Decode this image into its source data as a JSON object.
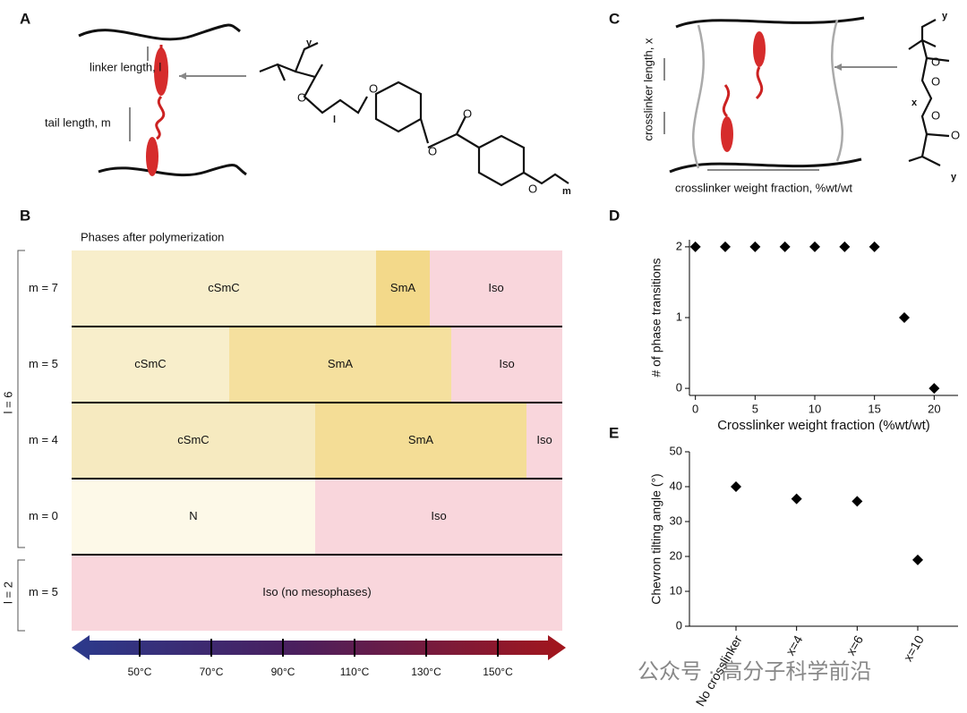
{
  "panels": {
    "a": "A",
    "b": "B",
    "c": "C",
    "d": "D",
    "e": "E"
  },
  "schematic_a": {
    "linker_label": "linker length, l",
    "tail_label": "tail length, m",
    "oxygen": "O",
    "y": "y",
    "l": "l",
    "m": "m"
  },
  "schematic_c": {
    "length_label": "crosslinker length, x",
    "fraction_label": "crosslinker weight fraction, %wt/wt",
    "oxygen": "O",
    "x": "x",
    "y": "y"
  },
  "phase_diagram": {
    "title": "Phases after polymerization",
    "group_labels": [
      "l = 6",
      "l = 2"
    ],
    "tlim": [
      31,
      168
    ],
    "temperature_ticks": [
      {
        "value": 50,
        "label": "50°C"
      },
      {
        "value": 70,
        "label": "70°C"
      },
      {
        "value": 90,
        "label": "90°C"
      },
      {
        "value": 110,
        "label": "110°C"
      },
      {
        "value": 130,
        "label": "130°C"
      },
      {
        "value": 150,
        "label": "150°C"
      }
    ],
    "rows": [
      {
        "label": "m = 7",
        "phases": [
          {
            "name": "cSmC",
            "from": 31,
            "to": 116,
            "color": "#f8eecb"
          },
          {
            "name": "SmA",
            "from": 116,
            "to": 131,
            "color": "#f3d98a"
          },
          {
            "name": "Iso",
            "from": 131,
            "to": 168,
            "color": "#f9d6dc"
          }
        ]
      },
      {
        "label": "m = 5",
        "phases": [
          {
            "name": "cSmC",
            "from": 31,
            "to": 75,
            "color": "#f8eecb"
          },
          {
            "name": "SmA",
            "from": 75,
            "to": 137,
            "color": "#f5e09e"
          },
          {
            "name": "Iso",
            "from": 137,
            "to": 168,
            "color": "#f9d6dc"
          }
        ]
      },
      {
        "label": "m = 4",
        "phases": [
          {
            "name": "cSmC",
            "from": 31,
            "to": 99,
            "color": "#f6eac0"
          },
          {
            "name": "SmA",
            "from": 99,
            "to": 158,
            "color": "#f4dd96"
          },
          {
            "name": "Iso",
            "from": 158,
            "to": 168,
            "color": "#f9d6dc"
          }
        ]
      },
      {
        "label": "m = 0",
        "phases": [
          {
            "name": "N",
            "from": 31,
            "to": 99,
            "color": "#fdf9e8"
          },
          {
            "name": "Iso",
            "from": 99,
            "to": 168,
            "color": "#f9d6dc"
          }
        ]
      },
      {
        "label": "m = 5",
        "phases": [
          {
            "name": "Iso (no mesophases)",
            "from": 31,
            "to": 168,
            "color": "#f9d6dc"
          }
        ]
      }
    ]
  },
  "chart_data": [
    {
      "type": "scatter",
      "x_label": "Crosslinker weight fraction (%wt/wt)",
      "y_label": "# of phase transitions",
      "x": [
        0,
        2.5,
        5,
        7.5,
        10,
        12.5,
        15,
        17.5,
        20
      ],
      "values": [
        2,
        2,
        2,
        2,
        2,
        2,
        2,
        1,
        0
      ],
      "color": "#000000",
      "xlim": [
        -0.5,
        22
      ],
      "ylim": [
        -0.1,
        2.1
      ],
      "xticks": [
        0,
        5,
        10,
        15,
        20
      ],
      "yticks": [
        0,
        1,
        2
      ]
    },
    {
      "type": "dot",
      "y_label": "Chevron tilting angle (°)",
      "categories": [
        "No crosslinker",
        "x=4",
        "x=6",
        "x=10"
      ],
      "values": [
        40,
        36.5,
        35.8,
        19
      ],
      "color": "#000000",
      "ylim": [
        0,
        50
      ],
      "yticks": [
        0,
        10,
        20,
        30,
        40,
        50
      ]
    }
  ],
  "watermark": "公众号 · 高分子科学前沿"
}
